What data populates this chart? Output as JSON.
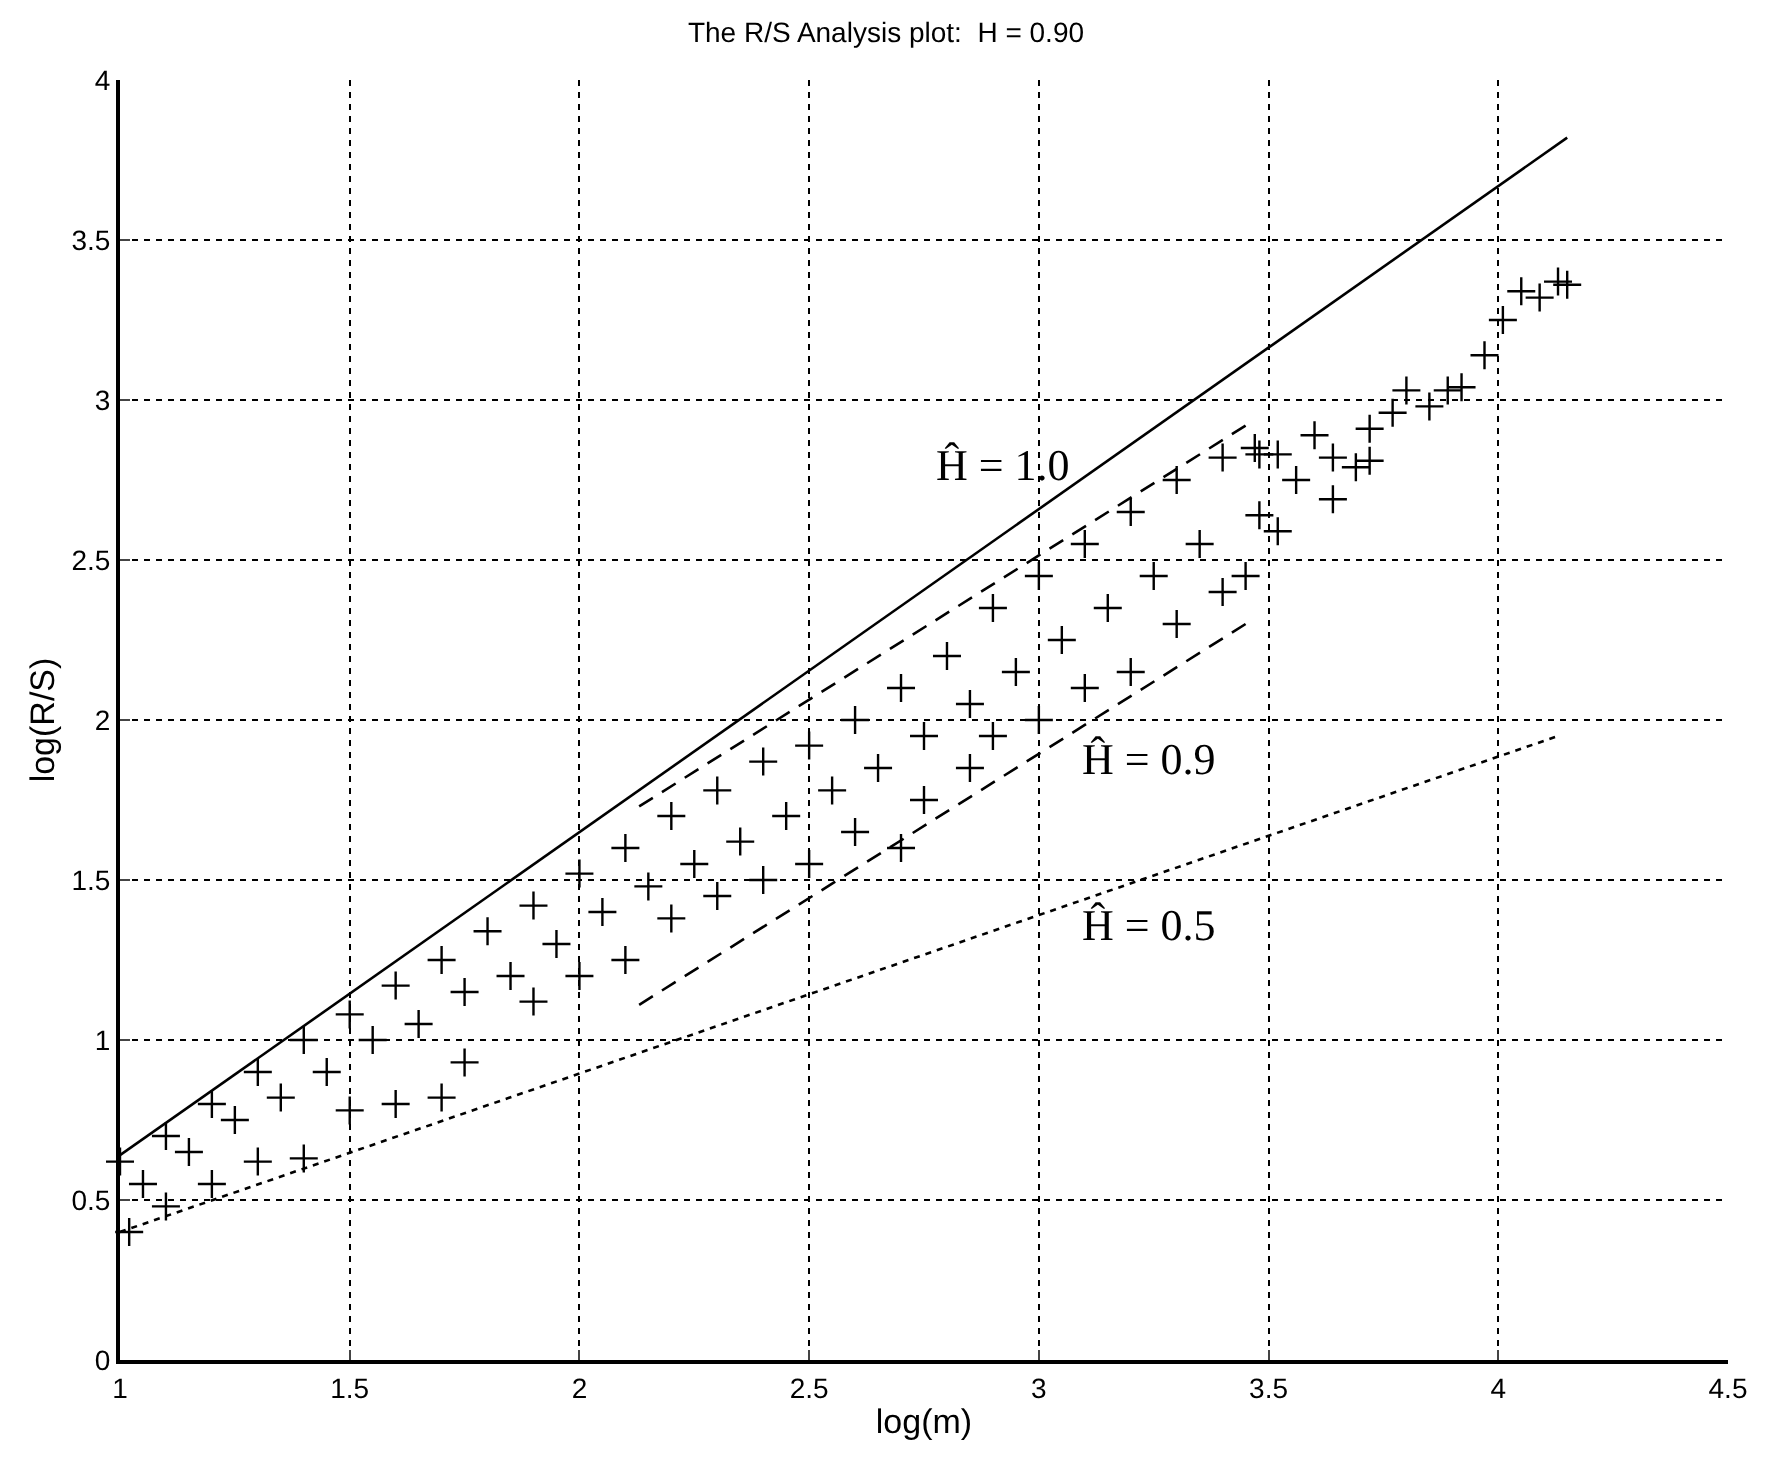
{
  "chart_data": {
    "type": "scatter",
    "title": "The R/S Analysis plot:  H = 0.90",
    "xlabel": "log(m)",
    "ylabel": "log(R/S)",
    "xlim": [
      1,
      4.5
    ],
    "xticks": [
      1,
      1.5,
      2,
      2.5,
      3,
      3.5,
      4,
      4.5
    ],
    "ylim": [
      0,
      4
    ],
    "yticks": [
      0,
      0.5,
      1,
      1.5,
      2,
      2.5,
      3,
      3.5,
      4
    ],
    "grid": true,
    "series": [
      {
        "marker": "cross",
        "color": "#000000",
        "x": [
          1.0,
          1.1,
          1.2,
          1.3,
          1.4,
          1.5,
          1.6,
          1.7,
          1.8,
          1.9,
          2.0,
          2.1,
          2.2,
          2.3,
          2.4,
          2.5,
          2.6,
          2.7,
          2.8,
          2.9,
          3.0,
          3.1,
          3.2,
          3.3,
          3.4,
          3.47,
          1.02,
          1.1,
          1.2,
          1.3,
          1.4,
          1.5,
          1.6,
          1.7,
          1.75,
          1.9,
          2.0,
          2.1,
          2.2,
          2.3,
          2.4,
          2.5,
          2.6,
          2.7,
          2.75,
          2.85,
          2.9,
          3.0,
          3.1,
          3.2,
          3.3,
          3.4,
          3.45,
          1.05,
          1.15,
          1.25,
          1.35,
          1.45,
          1.55,
          1.65,
          1.75,
          1.85,
          1.95,
          2.05,
          2.15,
          2.25,
          2.35,
          2.45,
          2.55,
          2.65,
          2.75,
          2.85,
          2.95,
          3.05,
          3.15,
          3.25,
          3.35,
          3.48,
          3.52,
          3.6,
          3.64,
          3.69,
          3.72,
          3.72,
          3.77,
          3.8,
          3.85,
          3.89,
          3.92,
          3.97,
          4.01,
          4.05,
          4.09,
          4.13,
          4.15,
          3.48,
          3.52,
          3.64,
          3.56
        ],
        "values": [
          0.62,
          0.7,
          0.8,
          0.9,
          1.0,
          1.08,
          1.17,
          1.25,
          1.34,
          1.42,
          1.52,
          1.6,
          1.7,
          1.78,
          1.87,
          1.92,
          2.0,
          2.1,
          2.2,
          2.35,
          2.45,
          2.55,
          2.65,
          2.75,
          2.82,
          2.85,
          0.4,
          0.48,
          0.55,
          0.62,
          0.63,
          0.78,
          0.8,
          0.82,
          0.93,
          1.12,
          1.2,
          1.25,
          1.38,
          1.45,
          1.5,
          1.55,
          1.65,
          1.6,
          1.75,
          1.85,
          1.95,
          2.0,
          2.1,
          2.15,
          2.3,
          2.4,
          2.45,
          0.55,
          0.65,
          0.75,
          0.82,
          0.9,
          1.0,
          1.05,
          1.15,
          1.2,
          1.3,
          1.4,
          1.48,
          1.55,
          1.62,
          1.7,
          1.78,
          1.85,
          1.95,
          2.05,
          2.15,
          2.25,
          2.35,
          2.45,
          2.55,
          2.83,
          2.83,
          2.89,
          2.82,
          2.79,
          2.81,
          2.91,
          2.96,
          3.03,
          2.98,
          3.03,
          3.04,
          3.14,
          3.25,
          3.34,
          3.32,
          3.37,
          3.36,
          2.64,
          2.59,
          2.69,
          2.75
        ]
      },
      {
        "type": "line",
        "line_style": "solid",
        "marker": "none",
        "color": "#000000",
        "x": [
          1,
          4.15
        ],
        "values": [
          0.64,
          3.82
        ]
      },
      {
        "type": "line",
        "line_style": "dashed",
        "marker": "none",
        "color": "#000000",
        "x": [
          2.13,
          3.45
        ],
        "values": [
          1.73,
          2.92
        ]
      },
      {
        "type": "line",
        "line_style": "dashed",
        "marker": "none",
        "color": "#000000",
        "x": [
          2.13,
          3.45
        ],
        "values": [
          1.11,
          2.3
        ]
      },
      {
        "type": "line",
        "line_style": "dotted",
        "marker": "none",
        "color": "#000000",
        "x": [
          1,
          4.13
        ],
        "values": [
          0.4,
          1.95
        ]
      }
    ],
    "annotations": [
      "Ĥ = 1.0",
      "Ĥ = 0.9",
      "Ĥ = 0.5"
    ]
  }
}
